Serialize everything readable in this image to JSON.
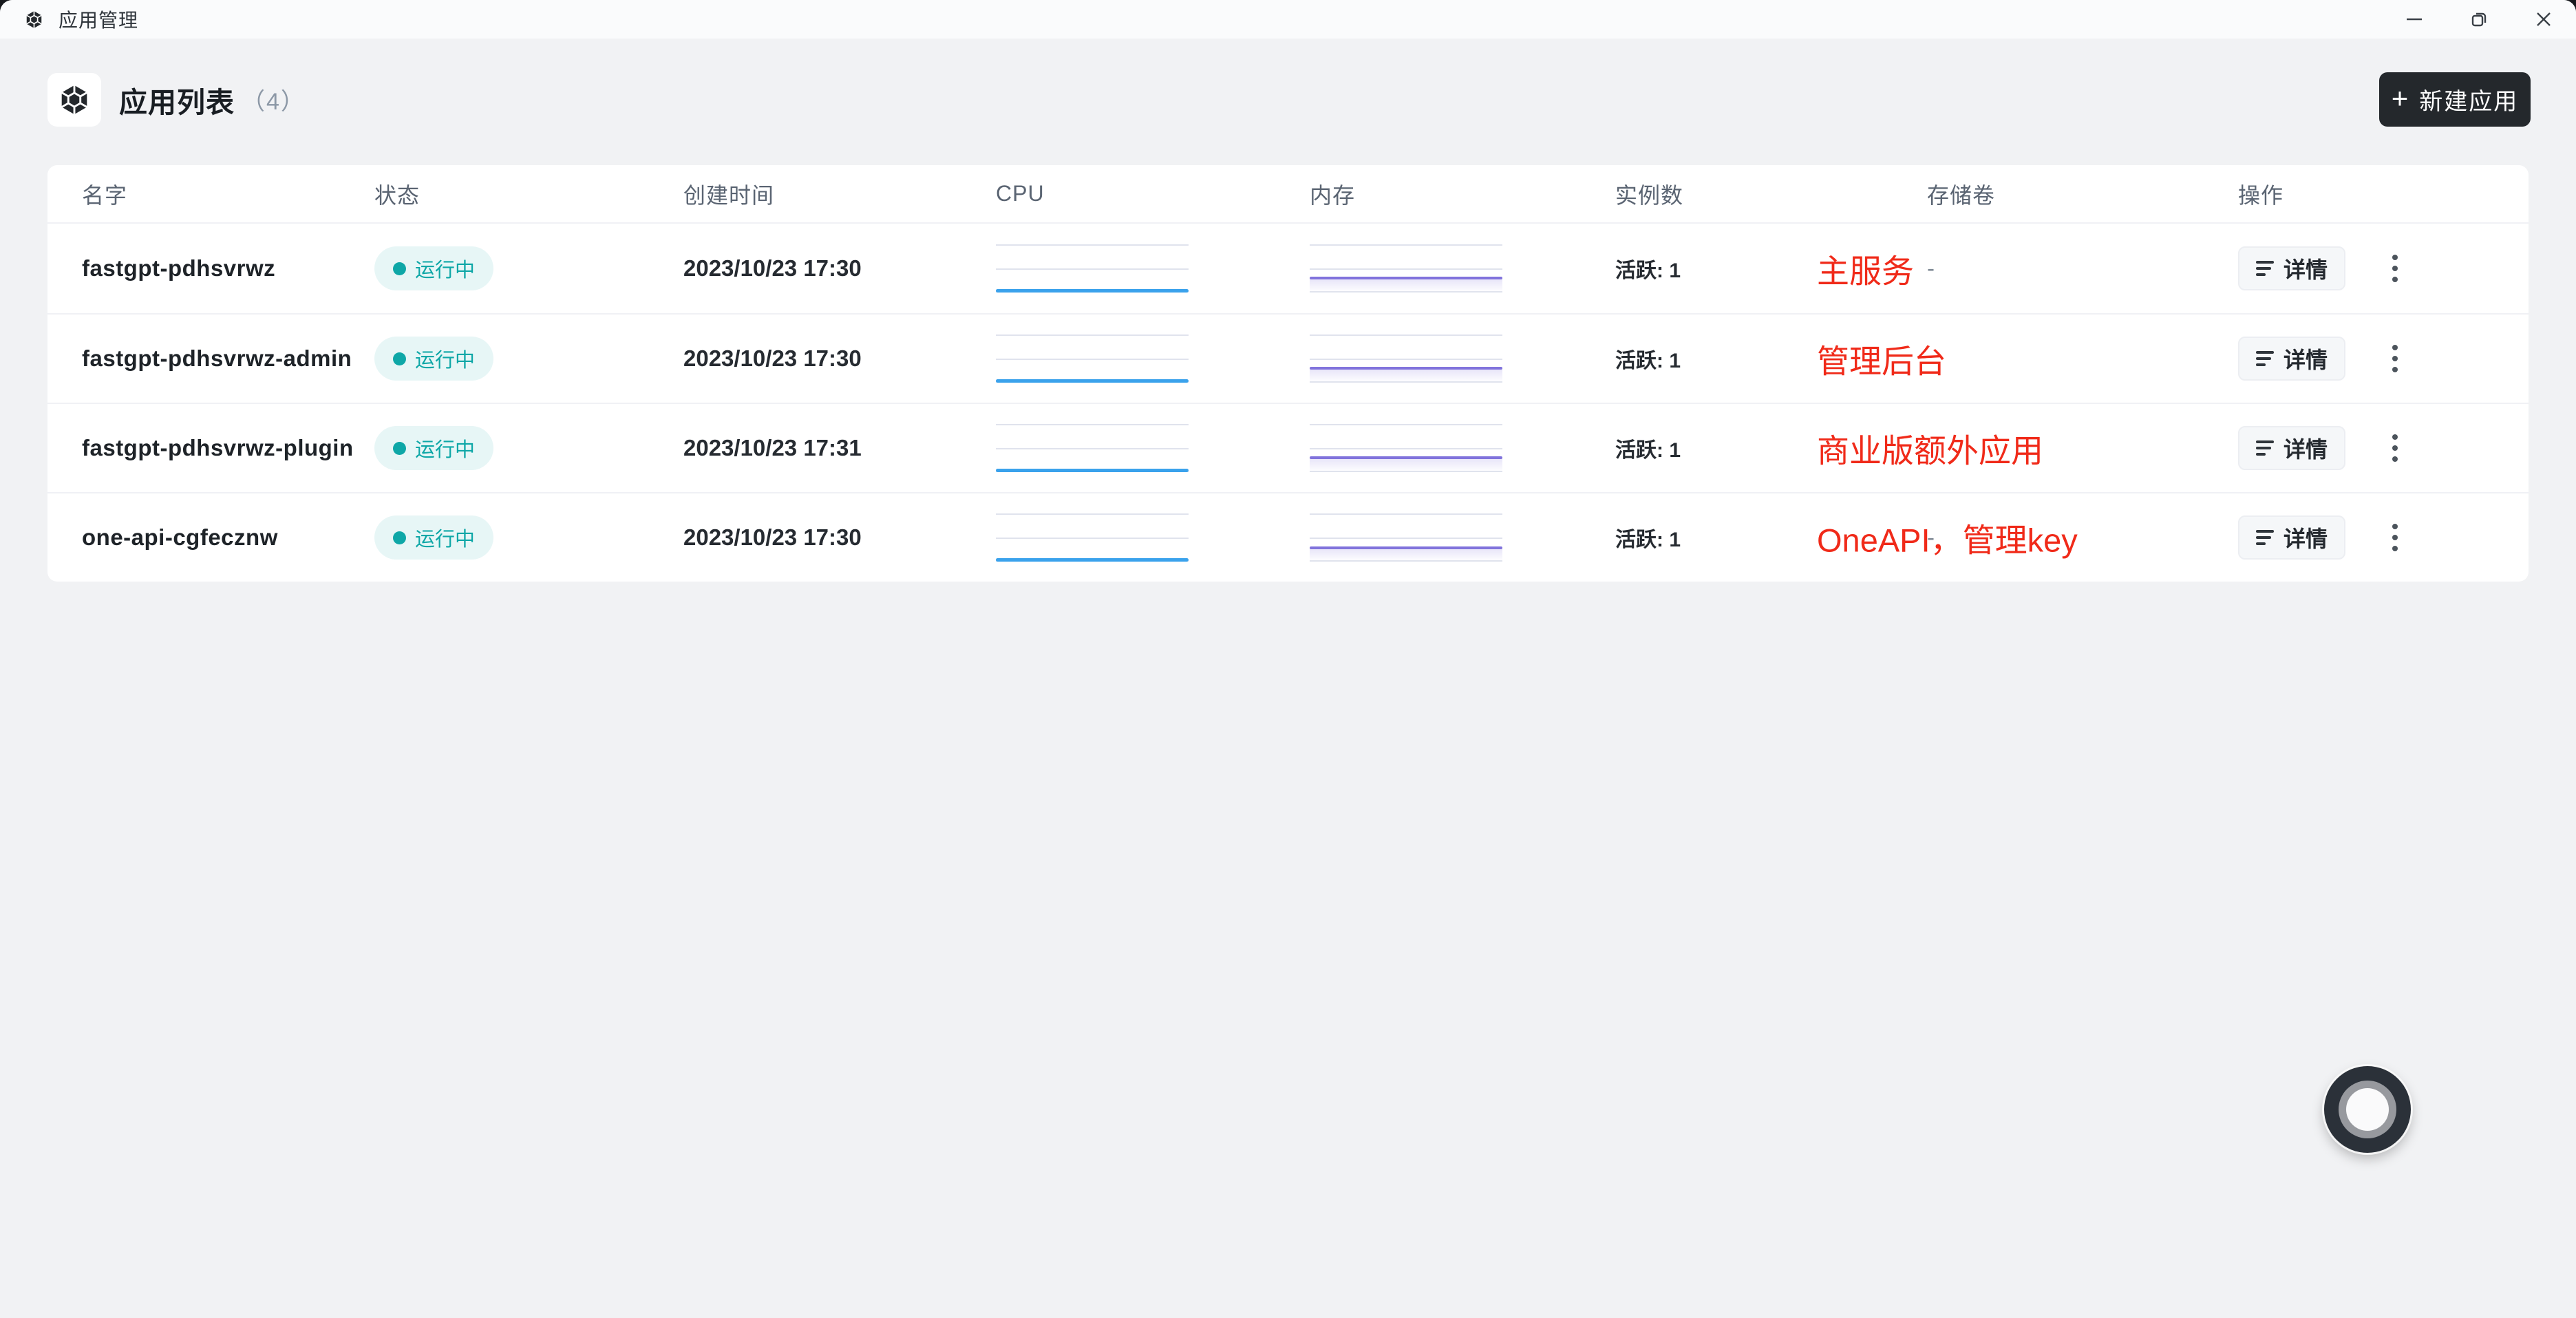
{
  "window": {
    "title": "应用管理"
  },
  "page": {
    "title": "应用列表",
    "count": "（4）",
    "new_button": "新建应用",
    "plus": "+"
  },
  "table": {
    "columns": [
      "名字",
      "状态",
      "创建时间",
      "CPU",
      "内存",
      "实例数",
      "存储卷",
      "操作"
    ],
    "detail_label": "详情",
    "rows": [
      {
        "name": "fastgpt-pdhsvrwz",
        "status": "运行中",
        "created": "2023/10/23 17:30",
        "instances": "活跃: 1",
        "storage": "-",
        "annotation": "主服务",
        "cpu_level": 0.0,
        "mem_level": 0.3
      },
      {
        "name": "fastgpt-pdhsvrwz-admin",
        "status": "运行中",
        "created": "2023/10/23 17:30",
        "instances": "活跃: 1",
        "storage": "",
        "annotation": "管理后台",
        "cpu_level": 0.0,
        "mem_level": 0.3
      },
      {
        "name": "fastgpt-pdhsvrwz-plugin",
        "status": "运行中",
        "created": "2023/10/23 17:31",
        "instances": "活跃: 1",
        "storage": "",
        "annotation": "商业版额外应用",
        "cpu_level": 0.0,
        "mem_level": 0.3
      },
      {
        "name": "one-api-cgfecznw",
        "status": "运行中",
        "created": "2023/10/23 17:30",
        "instances": "活跃: 1",
        "storage": "-",
        "annotation": "OneAPI，管理key",
        "cpu_level": 0.0,
        "mem_level": 0.28
      }
    ]
  },
  "colors": {
    "accent_dark": "#24282C",
    "titlebar_bg": "#FAFBFC",
    "page_bg": "#F1F2F4",
    "teal": "#0EA7A7",
    "teal_bg": "#E7F6F6",
    "red": "#F02A19",
    "blue": "#3AA2EC",
    "purple": "#8173DC"
  }
}
